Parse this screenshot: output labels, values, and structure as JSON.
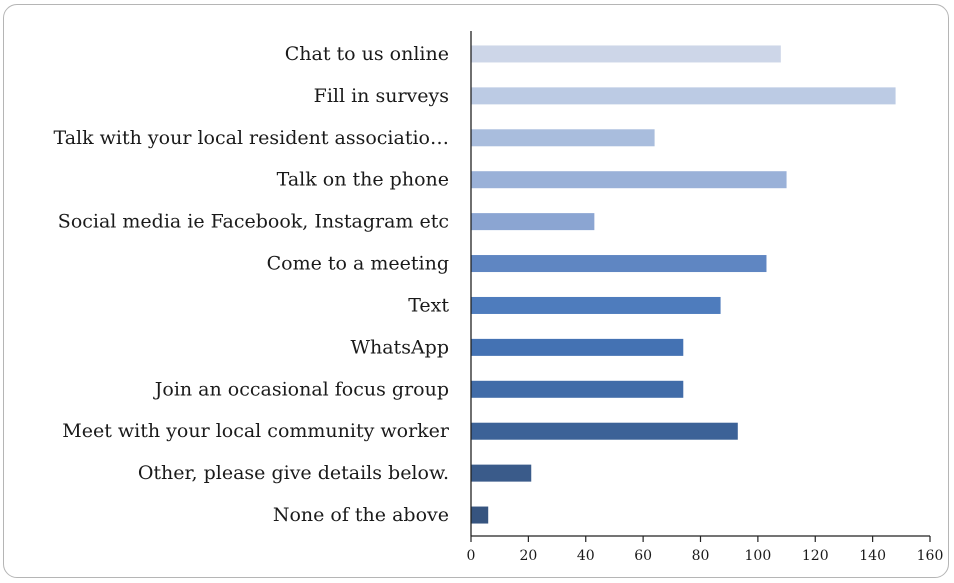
{
  "chart_data": {
    "type": "bar",
    "orientation": "horizontal",
    "categories": [
      "Chat to us online",
      "Fill in surveys",
      "Talk with your local resident associatio…",
      "Talk on the phone",
      "Social media ie Facebook, Instagram etc",
      "Come to a meeting",
      "Text",
      "WhatsApp",
      "Join an occasional focus group",
      "Meet with your local community worker",
      "Other, please give details below.",
      "None of the above"
    ],
    "values": [
      108,
      148,
      64,
      110,
      43,
      103,
      87,
      74,
      74,
      93,
      21,
      6
    ],
    "colors": [
      "#cdd6e8",
      "#bccbe4",
      "#a9bddd",
      "#9ab1d8",
      "#8ba5d2",
      "#5f86c2",
      "#4e7cbd",
      "#4472b3",
      "#416ca8",
      "#3c6297",
      "#3a5b8a",
      "#36547f"
    ],
    "xlim": [
      0,
      160
    ],
    "xticks": [
      "0",
      "20",
      "40",
      "60",
      "80",
      "100",
      "120",
      "140",
      "160"
    ],
    "grid": false,
    "title": "",
    "xlabel": "",
    "ylabel": ""
  }
}
